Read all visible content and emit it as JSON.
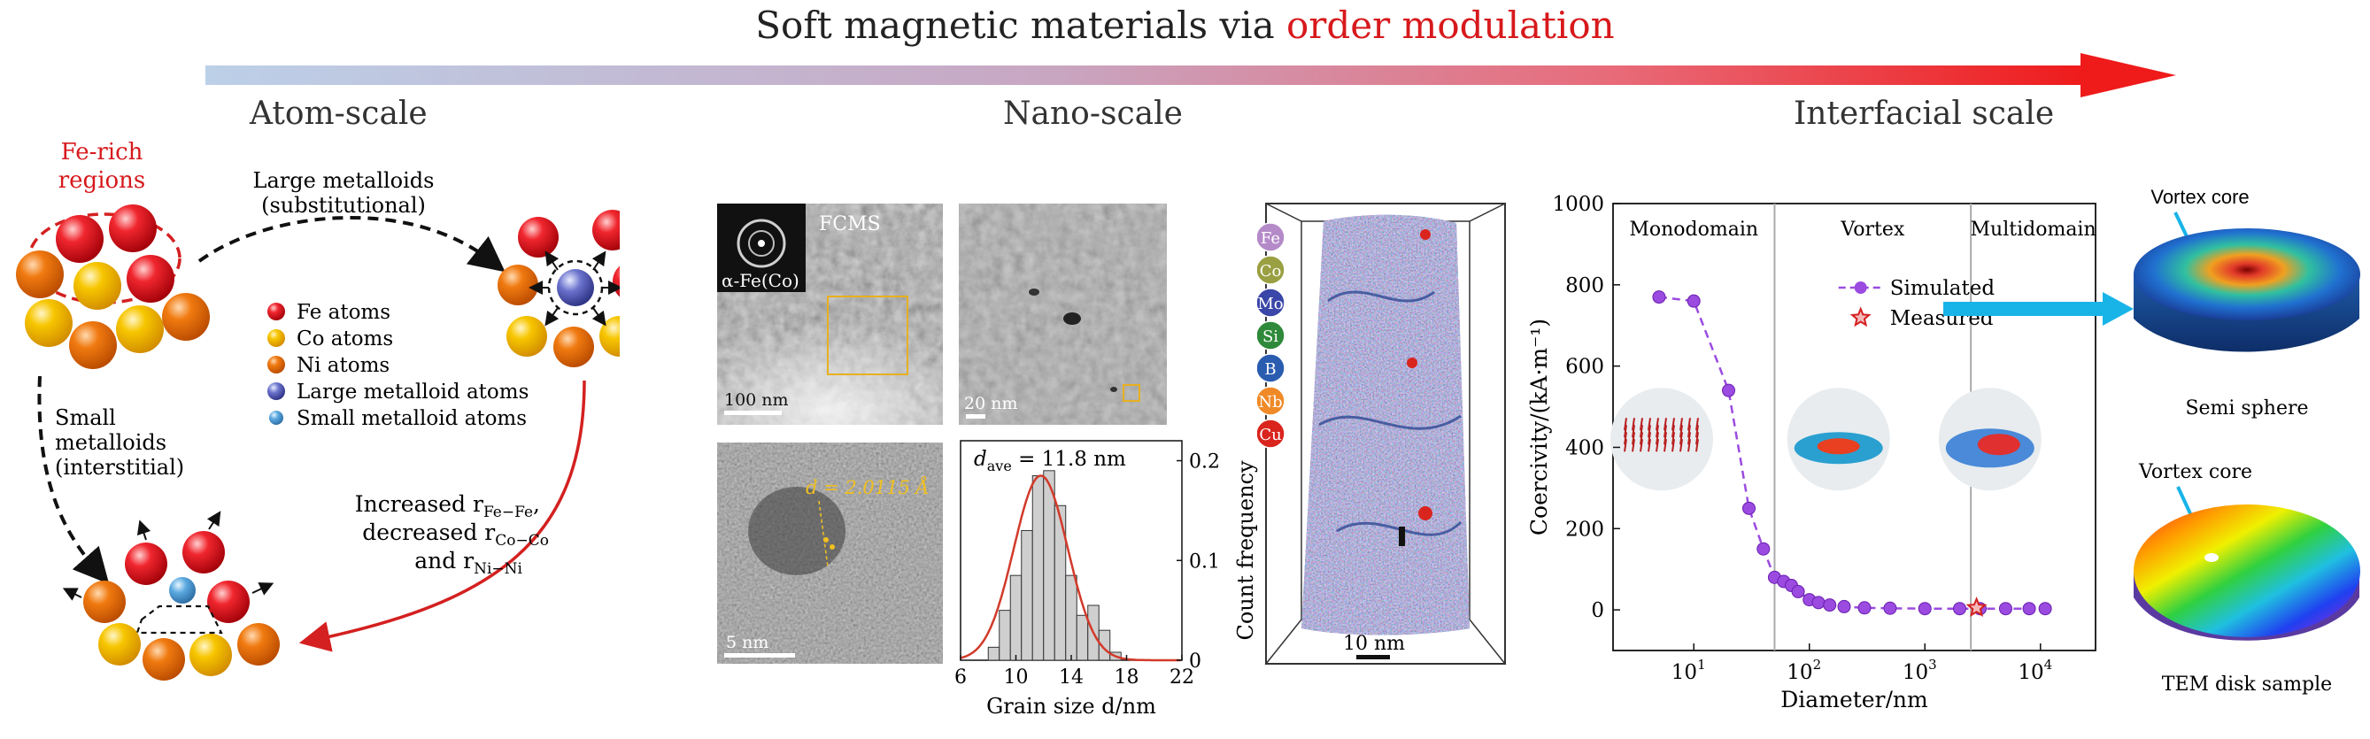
{
  "title": {
    "prefix": "Soft magnetic materials via ",
    "highlight": "order modulation"
  },
  "scales": {
    "atom": "Atom-scale",
    "nano": "Nano-scale",
    "interface": "Interfacial scale"
  },
  "atom": {
    "fe_rich": "Fe-rich regions",
    "large_metalloids": "Large metalloids",
    "substitutional": "(substitutional)",
    "small_metalloids_1": "Small",
    "small_metalloids_2": "metalloids",
    "interstitial": "(interstitial)",
    "increased": "Increased r",
    "fe_fe": "Fe−Fe",
    "decreased": "decreased r",
    "co_co": "Co−Co",
    "and": "and r",
    "ni_ni": "Ni−Ni",
    "legend": [
      "Fe atoms",
      "Co atoms",
      "Ni atoms",
      "Large metalloid atoms",
      "Small metalloid atoms"
    ]
  },
  "nano": {
    "fcms": "FCMS",
    "saed": "α-Fe(Co)",
    "scale_100": "100 nm",
    "scale_20": "20 nm",
    "scale_5": "5 nm",
    "d_spacing": "d = 2.0115 Å",
    "dave": "d",
    "dave_sub": "ave",
    "dave_val": " = 11.8 nm",
    "apt_elements": [
      "Fe",
      "Co",
      "Mo",
      "Si",
      "B",
      "Nb",
      "Cu"
    ],
    "apt_scale": "10 nm"
  },
  "interface": {
    "vortex_core_1": "Vortex core",
    "semi_sphere": "Semi sphere",
    "vortex_core_2": "Vortex core",
    "tem_disk": "TEM disk sample",
    "region_mono": "Monodomain",
    "region_vortex": "Vortex",
    "region_multi": "Multidomain"
  },
  "colors": {
    "fe": "#e3141e",
    "co": "#f5c400",
    "ni": "#f07a10",
    "large": "#5b64c4",
    "small": "#5aa9e0",
    "arrow_start": "#bcd0e8",
    "arrow_end": "#ef1a1a",
    "red_curve": "#d42020",
    "hist_fit": "#d23a2a",
    "sim": "#9b4be0",
    "cyan": "#18b4e8",
    "apt": [
      "#b48ac8",
      "#9aa042",
      "#3a46a8",
      "#2e8a3a",
      "#2a5cb0",
      "#f08a28",
      "#d9251e"
    ]
  },
  "chart_data": [
    {
      "type": "bar",
      "xlabel": "Grain size d/nm",
      "ylabel": "Count frequency",
      "xlim": [
        6,
        22
      ],
      "ylim": [
        0,
        0.22
      ],
      "xticks": [
        6,
        10,
        14,
        18,
        22
      ],
      "yticks": [
        0,
        0.1,
        0.2
      ],
      "bin_width": 0.8,
      "bins": [
        8.4,
        9.2,
        10.0,
        10.8,
        11.6,
        12.4,
        13.2,
        14.0,
        14.8,
        15.6,
        16.4,
        17.2
      ],
      "values": [
        0.013,
        0.05,
        0.085,
        0.13,
        0.185,
        0.19,
        0.155,
        0.085,
        0.045,
        0.055,
        0.03,
        0.008
      ],
      "fit": {
        "mean": 11.8,
        "sd": 1.95,
        "peak": 0.185
      }
    },
    {
      "type": "line",
      "xlabel": "Diameter/nm",
      "ylabel": "Coercivity/(kA·m⁻¹)",
      "xscale": "log",
      "xlim": [
        2,
        30000
      ],
      "ylim": [
        -100,
        1000
      ],
      "yticks": [
        0,
        200,
        400,
        600,
        800,
        1000
      ],
      "xticks": [
        {
          "v": 10,
          "e": "1"
        },
        {
          "v": 100,
          "e": "2"
        },
        {
          "v": 1000,
          "e": "3"
        },
        {
          "v": 10000,
          "e": "4"
        }
      ],
      "boundaries": [
        50,
        2500
      ],
      "series": [
        {
          "name": "Simulated",
          "x": [
            5,
            10,
            20,
            30,
            40,
            50,
            60,
            70,
            80,
            100,
            120,
            150,
            200,
            300,
            500,
            1000,
            2000,
            3000,
            5000,
            8000,
            11000
          ],
          "y": [
            770,
            760,
            540,
            250,
            150,
            80,
            70,
            60,
            45,
            25,
            18,
            12,
            8,
            5,
            4,
            3,
            3,
            3,
            3,
            3,
            3
          ]
        },
        {
          "name": "Measured",
          "x": [
            2800
          ],
          "y": [
            5
          ]
        }
      ]
    }
  ]
}
